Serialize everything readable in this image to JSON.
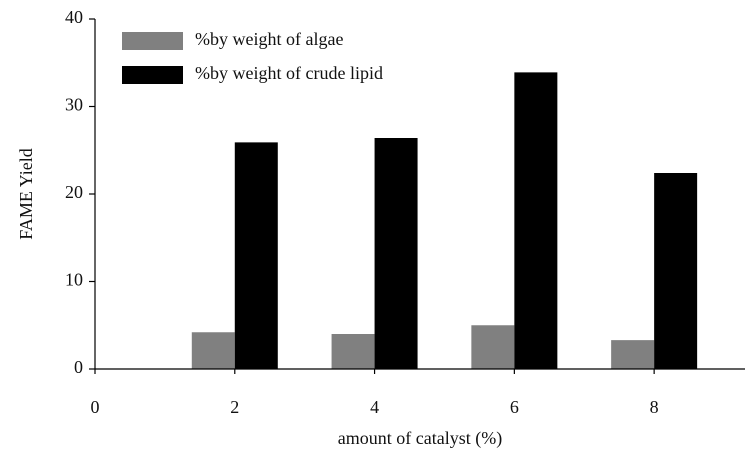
{
  "chart_data": {
    "type": "bar",
    "x": [
      2,
      4,
      6,
      8
    ],
    "series": [
      {
        "name": "%by weight of algae",
        "color": "#808080",
        "values": [
          4.2,
          4.0,
          5.0,
          3.3
        ]
      },
      {
        "name": "%by weight of crude lipid",
        "color": "#000000",
        "values": [
          25.9,
          26.4,
          33.9,
          22.4
        ]
      }
    ],
    "xlabel": "amount of catalyst (%)",
    "ylabel": "FAME Yield",
    "xlim": [
      0,
      9.3
    ],
    "xticks": [
      0,
      2,
      4,
      6,
      8
    ],
    "ylim": [
      0,
      40
    ],
    "yticks": [
      0,
      10,
      20,
      30,
      40
    ],
    "legend": "upper left"
  }
}
